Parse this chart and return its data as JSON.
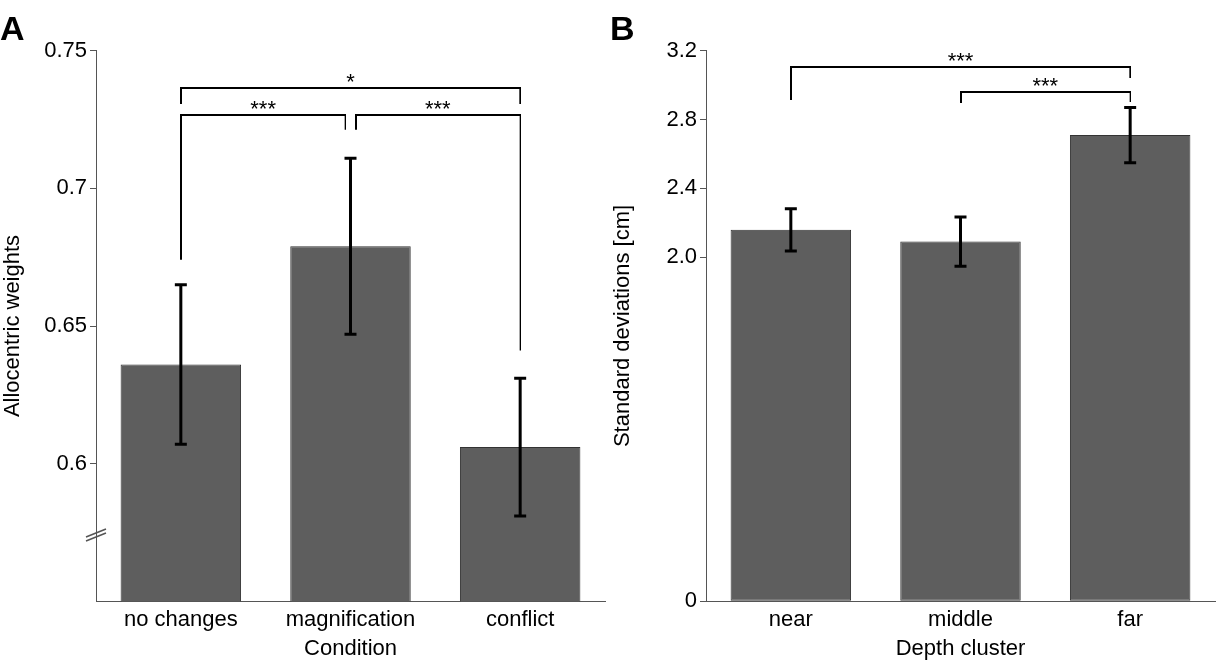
{
  "chart_data": [
    {
      "type": "bar",
      "title": "A",
      "xlabel": "Condition",
      "ylabel": "Allocentric weights",
      "categories": [
        "no changes",
        "magnification",
        "conflict"
      ],
      "values": [
        0.636,
        0.679,
        0.606
      ],
      "errors": [
        0.029,
        0.032,
        0.025
      ],
      "color": "#5e5e5e",
      "ylim": [
        0.55,
        0.75
      ],
      "yticks": [
        0.6,
        0.65,
        0.7,
        0.75
      ],
      "grid": false,
      "annotations": [
        "*",
        "***",
        "***"
      ]
    },
    {
      "type": "bar",
      "title": "B",
      "xlabel": "Depth cluster",
      "ylabel": "Standard deviations [cm]",
      "categories": [
        "near",
        "middle",
        "far"
      ],
      "values": [
        2.159,
        2.091,
        2.71
      ],
      "errors": [
        0.123,
        0.143,
        0.161
      ],
      "color": "#5e5e5e",
      "ylim": [
        0,
        3.2
      ],
      "yticks": [
        0,
        {
          "value": 2.0,
          "label": "2.0"
        },
        {
          "value": 2.4,
          "label": "2.4"
        },
        {
          "value": 2.8,
          "label": "2.8"
        },
        3.2
      ],
      "grid": false,
      "annotations": [
        "***",
        "***"
      ]
    }
  ]
}
